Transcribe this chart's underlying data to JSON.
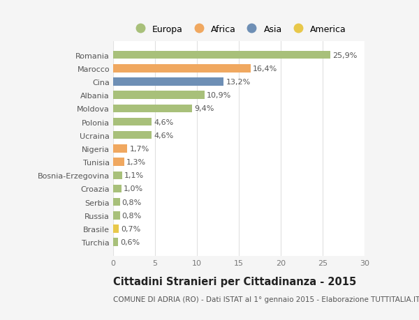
{
  "categories": [
    "Turchia",
    "Brasile",
    "Russia",
    "Serbia",
    "Croazia",
    "Bosnia-Erzegovina",
    "Tunisia",
    "Nigeria",
    "Ucraina",
    "Polonia",
    "Moldova",
    "Albania",
    "Cina",
    "Marocco",
    "Romania"
  ],
  "values": [
    0.6,
    0.7,
    0.8,
    0.8,
    1.0,
    1.1,
    1.3,
    1.7,
    4.6,
    4.6,
    9.4,
    10.9,
    13.2,
    16.4,
    25.9
  ],
  "labels": [
    "0,6%",
    "0,7%",
    "0,8%",
    "0,8%",
    "1,0%",
    "1,1%",
    "1,3%",
    "1,7%",
    "4,6%",
    "4,6%",
    "9,4%",
    "10,9%",
    "13,2%",
    "16,4%",
    "25,9%"
  ],
  "colors": [
    "#a8c07a",
    "#e8c84a",
    "#a8c07a",
    "#a8c07a",
    "#a8c07a",
    "#a8c07a",
    "#f0a860",
    "#f0a860",
    "#a8c07a",
    "#a8c07a",
    "#a8c07a",
    "#a8c07a",
    "#6e8fb5",
    "#f0a860",
    "#a8c07a"
  ],
  "legend_labels": [
    "Europa",
    "Africa",
    "Asia",
    "America"
  ],
  "legend_colors": [
    "#a8c07a",
    "#f0a860",
    "#6e8fb5",
    "#e8c84a"
  ],
  "title": "Cittadini Stranieri per Cittadinanza - 2015",
  "subtitle": "COMUNE DI ADRIA (RO) - Dati ISTAT al 1° gennaio 2015 - Elaborazione TUTTITALIA.IT",
  "xlim": [
    0,
    30
  ],
  "xticks": [
    0,
    5,
    10,
    15,
    20,
    25,
    30
  ],
  "background_color": "#f5f5f5",
  "plot_background": "#ffffff",
  "grid_color": "#e0e0e0",
  "bar_height": 0.6,
  "title_fontsize": 10.5,
  "subtitle_fontsize": 7.5,
  "tick_fontsize": 8,
  "label_fontsize": 8
}
